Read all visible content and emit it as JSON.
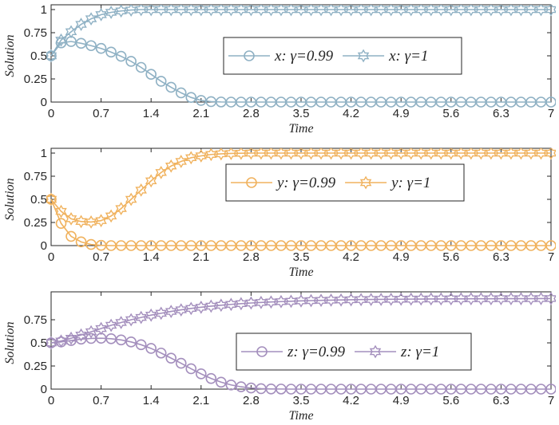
{
  "chart_data": [
    {
      "type": "line",
      "title": "",
      "xlabel": "Time",
      "ylabel": "Solution",
      "xlim": [
        0,
        7
      ],
      "ylim": [
        0,
        1
      ],
      "xticks": [
        "0",
        "0.7",
        "1.4",
        "2.1",
        "2.8",
        "3.5",
        "4.2",
        "4.9",
        "5.6",
        "6.3",
        "7"
      ],
      "yticks": [
        "0",
        "0.25",
        "0.5",
        "0.75",
        "1"
      ],
      "color": "#8fb1c4",
      "legend_location": "center-right",
      "series": [
        {
          "name": "x: γ=0.99",
          "marker": "circle",
          "x": [
            0.0,
            0.14,
            0.28,
            0.42,
            0.56,
            0.7,
            0.84,
            0.98,
            1.12,
            1.26,
            1.4,
            1.54,
            1.68,
            1.82,
            1.96,
            2.1,
            2.24,
            2.38,
            2.52,
            2.66,
            2.8,
            2.94,
            3.08,
            3.22,
            3.36,
            3.5,
            3.64,
            3.78,
            3.92,
            4.06,
            4.2,
            4.34,
            4.48,
            4.62,
            4.76,
            4.9,
            5.04,
            5.18,
            5.32,
            5.46,
            5.6,
            5.74,
            5.88,
            6.02,
            6.16,
            6.3,
            6.44,
            6.58,
            6.72,
            6.86,
            7.0
          ],
          "values": [
            0.5,
            0.64,
            0.655,
            0.635,
            0.61,
            0.58,
            0.54,
            0.495,
            0.44,
            0.375,
            0.3,
            0.225,
            0.16,
            0.1,
            0.05,
            0.018,
            0.005,
            0.001,
            0,
            0,
            0,
            0,
            0,
            0,
            0,
            0,
            0,
            0,
            0,
            0,
            0,
            0,
            0,
            0,
            0,
            0,
            0,
            0,
            0,
            0,
            0,
            0,
            0,
            0,
            0,
            0,
            0,
            0,
            0,
            0,
            0
          ]
        },
        {
          "name": "x: γ=1",
          "marker": "hexagram",
          "x": [
            0.0,
            0.14,
            0.28,
            0.42,
            0.56,
            0.7,
            0.84,
            0.98,
            1.12,
            1.26,
            1.4,
            1.54,
            1.68,
            1.82,
            1.96,
            2.1,
            2.24,
            2.38,
            2.52,
            2.66,
            2.8,
            2.94,
            3.08,
            3.22,
            3.36,
            3.5,
            3.64,
            3.78,
            3.92,
            4.06,
            4.2,
            4.34,
            4.48,
            4.62,
            4.76,
            4.9,
            5.04,
            5.18,
            5.32,
            5.46,
            5.6,
            5.74,
            5.88,
            6.02,
            6.16,
            6.3,
            6.44,
            6.58,
            6.72,
            6.86,
            7.0
          ],
          "values": [
            0.5,
            0.67,
            0.76,
            0.84,
            0.9,
            0.945,
            0.97,
            0.985,
            0.995,
            1,
            1,
            1,
            1,
            1,
            1,
            1,
            1,
            1,
            1,
            1,
            1,
            1,
            1,
            1,
            1,
            1,
            1,
            1,
            1,
            1,
            1,
            1,
            1,
            1,
            1,
            1,
            1,
            1,
            1,
            1,
            1,
            1,
            1,
            1,
            1,
            1,
            1,
            1,
            1,
            1,
            1
          ]
        }
      ]
    },
    {
      "type": "line",
      "title": "",
      "xlabel": "Time",
      "ylabel": "Solution",
      "xlim": [
        0,
        7
      ],
      "ylim": [
        0,
        1
      ],
      "xticks": [
        "0",
        "0.7",
        "1.4",
        "2.1",
        "2.8",
        "3.5",
        "4.2",
        "4.9",
        "5.6",
        "6.3",
        "7"
      ],
      "yticks": [
        "0",
        "0.25",
        "0.5",
        "0.75",
        "1"
      ],
      "color": "#f0b25e",
      "legend_location": "center-right",
      "series": [
        {
          "name": "y: γ=0.99",
          "marker": "circle",
          "x": [
            0.0,
            0.14,
            0.28,
            0.42,
            0.56,
            0.7,
            0.84,
            0.98,
            1.12,
            1.26,
            1.4,
            1.54,
            1.68,
            1.82,
            1.96,
            2.1,
            2.24,
            2.38,
            2.52,
            2.66,
            2.8,
            2.94,
            3.08,
            3.22,
            3.36,
            3.5,
            3.64,
            3.78,
            3.92,
            4.06,
            4.2,
            4.34,
            4.48,
            4.62,
            4.76,
            4.9,
            5.04,
            5.18,
            5.32,
            5.46,
            5.6,
            5.74,
            5.88,
            6.02,
            6.16,
            6.3,
            6.44,
            6.58,
            6.72,
            6.86,
            7.0
          ],
          "values": [
            0.5,
            0.24,
            0.1,
            0.04,
            0.012,
            0.003,
            0,
            0,
            0,
            0,
            0,
            0,
            0,
            0,
            0,
            0,
            0,
            0,
            0,
            0,
            0,
            0,
            0,
            0,
            0,
            0,
            0,
            0,
            0,
            0,
            0,
            0,
            0,
            0,
            0,
            0,
            0,
            0,
            0,
            0,
            0,
            0,
            0,
            0,
            0,
            0,
            0,
            0,
            0,
            0,
            0
          ]
        },
        {
          "name": "y: γ=1",
          "marker": "hexagram",
          "x": [
            0.0,
            0.14,
            0.28,
            0.42,
            0.56,
            0.7,
            0.84,
            0.98,
            1.12,
            1.26,
            1.4,
            1.54,
            1.68,
            1.82,
            1.96,
            2.1,
            2.24,
            2.38,
            2.52,
            2.66,
            2.8,
            2.94,
            3.08,
            3.22,
            3.36,
            3.5,
            3.64,
            3.78,
            3.92,
            4.06,
            4.2,
            4.34,
            4.48,
            4.62,
            4.76,
            4.9,
            5.04,
            5.18,
            5.32,
            5.46,
            5.6,
            5.74,
            5.88,
            6.02,
            6.16,
            6.3,
            6.44,
            6.58,
            6.72,
            6.86,
            7.0
          ],
          "values": [
            0.5,
            0.37,
            0.29,
            0.26,
            0.255,
            0.27,
            0.32,
            0.4,
            0.5,
            0.6,
            0.7,
            0.79,
            0.86,
            0.91,
            0.95,
            0.97,
            0.985,
            0.992,
            0.996,
            0.998,
            1,
            1,
            1,
            1,
            1,
            1,
            1,
            1,
            1,
            1,
            1,
            1,
            1,
            1,
            1,
            1,
            1,
            1,
            1,
            1,
            1,
            1,
            1,
            1,
            1,
            1,
            1,
            1,
            1,
            1,
            1
          ]
        }
      ]
    },
    {
      "type": "line",
      "title": "",
      "xlabel": "Time",
      "ylabel": "Solution",
      "xlim": [
        0,
        7
      ],
      "ylim": [
        0,
        1
      ],
      "xticks": [
        "0",
        "0.7",
        "1.4",
        "2.1",
        "2.8",
        "3.5",
        "4.2",
        "4.9",
        "5.6",
        "6.3",
        "7"
      ],
      "yticks": [
        "0",
        "0.25",
        "0.5",
        "0.75"
      ],
      "color": "#a48fbd",
      "legend_location": "center-right",
      "series": [
        {
          "name": "z: γ=0.99",
          "marker": "circle",
          "x": [
            0.0,
            0.14,
            0.28,
            0.42,
            0.56,
            0.7,
            0.84,
            0.98,
            1.12,
            1.26,
            1.4,
            1.54,
            1.68,
            1.82,
            1.96,
            2.1,
            2.24,
            2.38,
            2.52,
            2.66,
            2.8,
            2.94,
            3.08,
            3.22,
            3.36,
            3.5,
            3.64,
            3.78,
            3.92,
            4.06,
            4.2,
            4.34,
            4.48,
            4.62,
            4.76,
            4.9,
            5.04,
            5.18,
            5.32,
            5.46,
            5.6,
            5.74,
            5.88,
            6.02,
            6.16,
            6.3,
            6.44,
            6.58,
            6.72,
            6.86,
            7.0
          ],
          "values": [
            0.5,
            0.51,
            0.525,
            0.54,
            0.548,
            0.55,
            0.545,
            0.532,
            0.51,
            0.48,
            0.44,
            0.39,
            0.335,
            0.28,
            0.22,
            0.165,
            0.115,
            0.075,
            0.045,
            0.025,
            0.012,
            0.005,
            0.002,
            0.001,
            0,
            0,
            0,
            0,
            0,
            0,
            0,
            0,
            0,
            0,
            0,
            0,
            0,
            0,
            0,
            0,
            0,
            0,
            0,
            0,
            0,
            0,
            0,
            0,
            0,
            0,
            0
          ]
        },
        {
          "name": "z: γ=1",
          "marker": "hexagram",
          "x": [
            0.0,
            0.14,
            0.28,
            0.42,
            0.56,
            0.7,
            0.84,
            0.98,
            1.12,
            1.26,
            1.4,
            1.54,
            1.68,
            1.82,
            1.96,
            2.1,
            2.24,
            2.38,
            2.52,
            2.66,
            2.8,
            2.94,
            3.08,
            3.22,
            3.36,
            3.5,
            3.64,
            3.78,
            3.92,
            4.06,
            4.2,
            4.34,
            4.48,
            4.62,
            4.76,
            4.9,
            5.04,
            5.18,
            5.32,
            5.46,
            5.6,
            5.74,
            5.88,
            6.02,
            6.16,
            6.3,
            6.44,
            6.58,
            6.72,
            6.86,
            7.0
          ],
          "values": [
            0.5,
            0.52,
            0.55,
            0.585,
            0.62,
            0.655,
            0.69,
            0.72,
            0.75,
            0.775,
            0.8,
            0.82,
            0.84,
            0.857,
            0.872,
            0.885,
            0.897,
            0.907,
            0.916,
            0.924,
            0.931,
            0.937,
            0.942,
            0.946,
            0.95,
            0.954,
            0.957,
            0.96,
            0.962,
            0.964,
            0.966,
            0.968,
            0.969,
            0.97,
            0.971,
            0.972,
            0.973,
            0.974,
            0.975,
            0.975,
            0.976,
            0.976,
            0.977,
            0.977,
            0.977,
            0.978,
            0.978,
            0.978,
            0.978,
            0.979,
            0.979
          ]
        }
      ]
    }
  ]
}
